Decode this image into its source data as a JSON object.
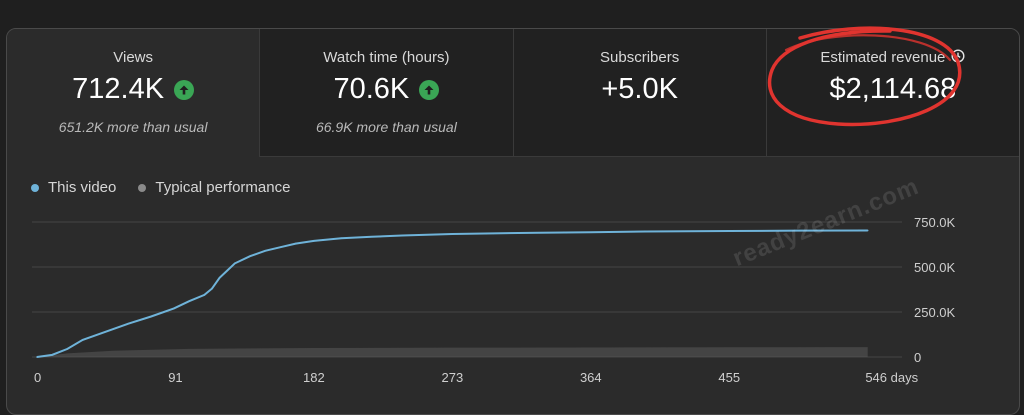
{
  "metrics": [
    {
      "label": "Views",
      "value": "712.4K",
      "note": "651.2K more than usual",
      "trend": "up"
    },
    {
      "label": "Watch time (hours)",
      "value": "70.6K",
      "note": "66.9K more than usual",
      "trend": "up"
    },
    {
      "label": "Subscribers",
      "value": "+5.0K",
      "note": ""
    },
    {
      "label": "Estimated revenue",
      "value": "$2,114.68",
      "note": ""
    }
  ],
  "watermark": "ready2earn.com",
  "colors": {
    "this_video": "#6fb3d9",
    "typical": "#5a5a5a",
    "up_green": "#3aa655",
    "annotation_red": "#e0342f"
  },
  "chart_data": {
    "type": "line",
    "title": "",
    "xlabel": "days",
    "ylabel": "",
    "xlim": [
      0,
      560
    ],
    "ylim": [
      0,
      750000
    ],
    "x_ticks": [
      0,
      91,
      182,
      273,
      364,
      455,
      546
    ],
    "x_tick_labels": [
      "0",
      "91",
      "182",
      "273",
      "364",
      "455",
      "546 days"
    ],
    "y_ticks": [
      0,
      250000,
      500000,
      750000
    ],
    "y_tick_labels": [
      "0",
      "250.0K",
      "500.0K",
      "750.0K"
    ],
    "legend": [
      "This video",
      "Typical performance"
    ],
    "series": [
      {
        "name": "This video",
        "x": [
          0,
          10,
          20,
          30,
          45,
          60,
          75,
          90,
          100,
          110,
          115,
          120,
          125,
          130,
          140,
          150,
          160,
          170,
          182,
          200,
          220,
          240,
          273,
          300,
          330,
          364,
          400,
          455,
          500,
          546
        ],
        "values": [
          0,
          12000,
          45000,
          95000,
          140000,
          185000,
          225000,
          270000,
          310000,
          345000,
          380000,
          440000,
          480000,
          520000,
          560000,
          590000,
          610000,
          630000,
          645000,
          660000,
          668000,
          675000,
          683000,
          687000,
          690000,
          693000,
          697000,
          700000,
          702000,
          703000
        ]
      },
      {
        "name": "Typical performance",
        "x": [
          0,
          20,
          50,
          100,
          182,
          273,
          364,
          455,
          546
        ],
        "values": [
          0,
          20000,
          35000,
          45000,
          50000,
          52000,
          53000,
          54000,
          55000
        ]
      }
    ]
  }
}
